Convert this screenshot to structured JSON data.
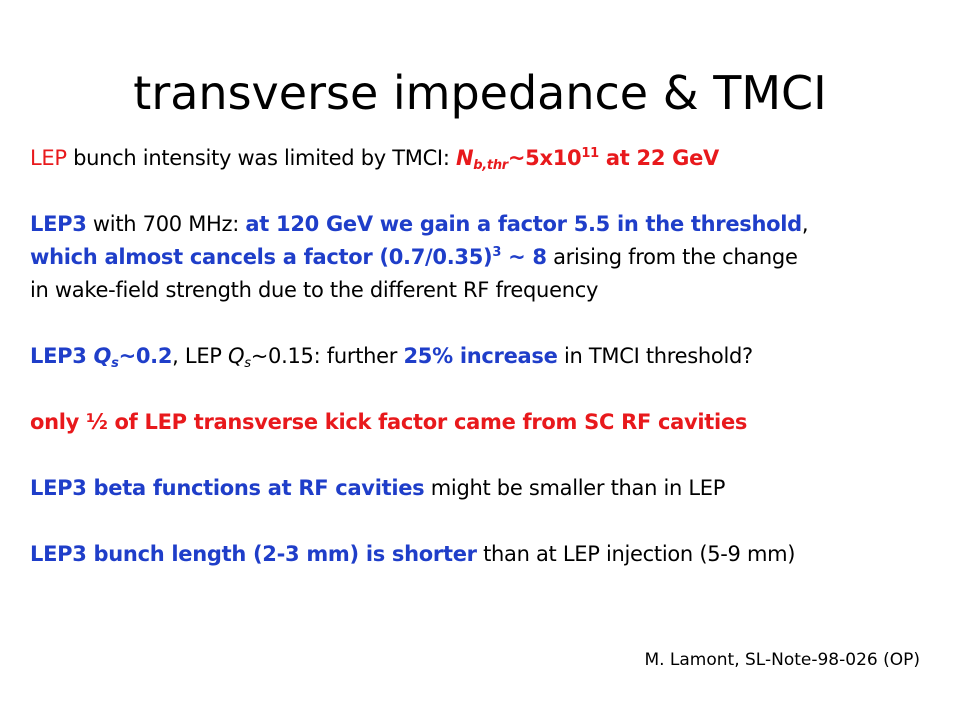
{
  "title": "transverse impedance & TMCI",
  "p1": {
    "a": "LEP",
    "b": " bunch intensity was limited by TMCI: ",
    "c": "N",
    "d": "b,thr",
    "e": "~5x10",
    "f": "11",
    "g": " at 22 GeV"
  },
  "p2": {
    "a": "LEP3",
    "b": " with 700 MHz: ",
    "c": "at 120 GeV we gain a factor 5.5 in the threshold",
    "d": ",",
    "e": "which almost cancels a factor (0.7/0.35)",
    "f": "3",
    "g": " ~ 8",
    "h": " arising from the change",
    "i": "in wake-field strength due to the different RF frequency"
  },
  "p3": {
    "a": "LEP3 ",
    "b": "Q",
    "c": "s",
    "d": "~0.2",
    "e": ", LEP ",
    "f": "Q",
    "g": "s",
    "h": "~0.15:  further ",
    "i": "25% increase",
    "j": " in TMCI threshold?"
  },
  "p4": {
    "a": "only ½ of LEP transverse kick factor came from SC RF cavities"
  },
  "p5": {
    "a": "LEP3 beta functions at RF cavities",
    "b": " might be smaller than in LEP"
  },
  "p6": {
    "a": "LEP3 bunch length (2-3 mm) is shorter",
    "b": " than at LEP injection (5-9 mm)"
  },
  "reference": "M. Lamont, SL-Note-98-026 (OP)",
  "colors": {
    "red": "#e8191c",
    "blue": "#1f3ec9",
    "text": "#000000"
  }
}
